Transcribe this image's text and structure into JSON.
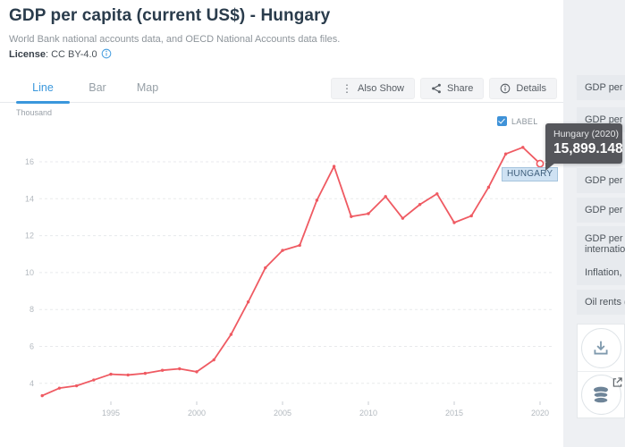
{
  "header": {
    "title": "GDP per capita (current US$) - Hungary",
    "source": "World Bank national accounts data, and OECD National Accounts data files.",
    "license_label": "License",
    "license_value": ": CC BY-4.0"
  },
  "tabs": [
    {
      "label": "Line",
      "active": true
    },
    {
      "label": "Bar",
      "active": false
    },
    {
      "label": "Map",
      "active": false
    }
  ],
  "toolbar": {
    "also_show": "Also Show",
    "share": "Share",
    "details": "Details"
  },
  "chart_header": {
    "unit": "Thousand",
    "label_checkbox": "LABEL",
    "checkbox_checked": true
  },
  "tooltip": {
    "title": "Hungary (2020)",
    "value": "15,899.148"
  },
  "series_tag": "HUNGARY",
  "sidebar": {
    "items": [
      {
        "lines": [
          "GDP per ca"
        ]
      },
      {
        "lines": [
          "GDP per ca"
        ]
      },
      {
        "lines": [
          "GDP per ca"
        ]
      },
      {
        "lines": [
          "GDP per ca"
        ]
      },
      {
        "lines": [
          "GDP per ca"
        ]
      },
      {
        "lines": [
          "GDP per ca",
          "internatio"
        ]
      },
      {
        "lines": [
          "Inflation, "
        ]
      },
      {
        "lines": [
          "Oil rents ("
        ]
      }
    ],
    "tools": [
      "download-icon",
      "database-icon"
    ]
  },
  "colors": {
    "accent_blue": "#3a97dc",
    "line_red": "#ef5a62",
    "tooltip_bg": "#55565b",
    "chip_bg": "#cfe2f3",
    "grid": "#e8eaec",
    "axis_text": "#b3b9bf",
    "icon_steel": "#7f99ad",
    "db_icon": "#6e8498"
  },
  "chart_data": {
    "type": "line",
    "title": "GDP per capita (current US$) - Hungary",
    "unit": "Thousand",
    "ylabel": "Thousand",
    "ylim": [
      3,
      17
    ],
    "yticks": [
      16,
      14,
      12,
      10,
      8,
      6,
      4
    ],
    "xticks": [
      1995,
      2000,
      2005,
      2010,
      2015,
      2020
    ],
    "grid": "dashed-horizontal",
    "legend_position": "none",
    "x": [
      1991,
      1992,
      1993,
      1994,
      1995,
      1996,
      1997,
      1998,
      1999,
      2000,
      2001,
      2002,
      2003,
      2004,
      2005,
      2006,
      2007,
      2008,
      2009,
      2010,
      2011,
      2012,
      2013,
      2014,
      2015,
      2016,
      2017,
      2018,
      2019,
      2020
    ],
    "series": [
      {
        "name": "Hungary",
        "values": [
          3333.2,
          3740.2,
          3868.2,
          4181.4,
          4494.7,
          4454.2,
          4541.7,
          4706.9,
          4789.7,
          4625.9,
          5272.8,
          6648.6,
          8409.5,
          10259.6,
          11200.5,
          11476.6,
          13918.5,
          15753.9,
          13036.1,
          13191.9,
          14118.2,
          12940.7,
          13687.7,
          14267.1,
          12706.7,
          13071.8,
          14621.4,
          16425.1,
          16782.4,
          15899.148
        ]
      }
    ],
    "highlight": {
      "year": 2020,
      "value": 15899.148,
      "label": "Hungary (2020)",
      "display": "15,899.148"
    }
  }
}
